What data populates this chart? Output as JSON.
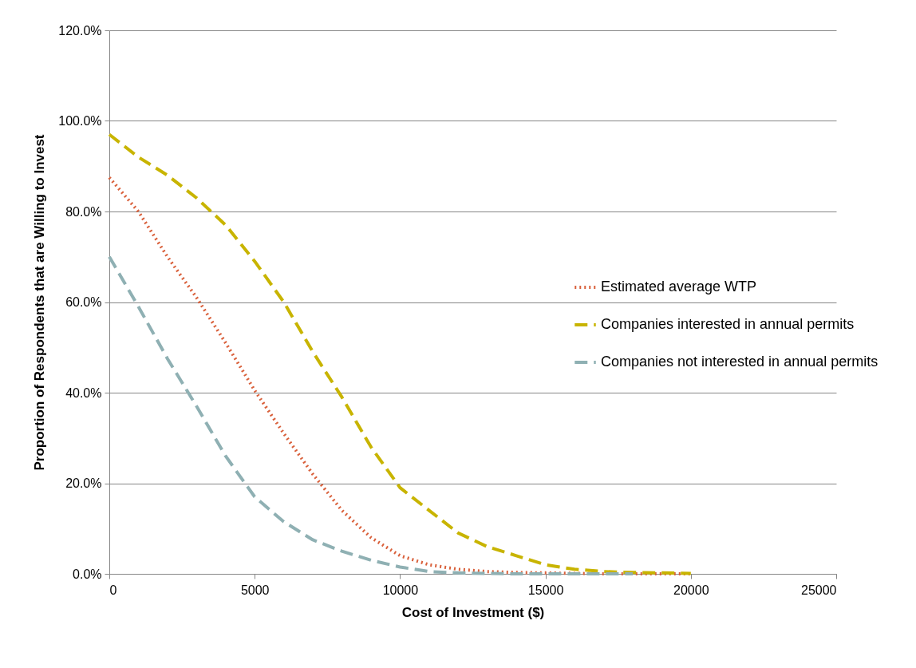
{
  "chart_data": {
    "type": "line",
    "xlabel": "Cost of Investment ($)",
    "ylabel": "Proportion of Respondents that are Willing to Invest",
    "x": [
      0,
      1000,
      2000,
      3000,
      4000,
      5000,
      6000,
      7000,
      8000,
      9000,
      10000,
      11000,
      12000,
      13000,
      14000,
      15000,
      16000,
      17000,
      18000,
      19000,
      20000
    ],
    "series": [
      {
        "name": "Estimated average WTP",
        "color": "#d9603b",
        "line_style": "dotted",
        "values": [
          87.5,
          80,
          70,
          61,
          51,
          40.5,
          31,
          22,
          14,
          8,
          4,
          2,
          1,
          0.5,
          0.3,
          0.2,
          0.1,
          0,
          0,
          0,
          0
        ]
      },
      {
        "name": "Companies interested in annual permits",
        "color": "#c8b400",
        "line_style": "dashed",
        "values": [
          97,
          92,
          88,
          83,
          77,
          69,
          60,
          49,
          39,
          28,
          19,
          14,
          9,
          6,
          4,
          2,
          1,
          0.5,
          0.3,
          0.2,
          0.1
        ]
      },
      {
        "name": "Companies not interested in annual permits",
        "color": "#8fb0b3",
        "line_style": "dashed",
        "values": [
          70,
          59,
          47.5,
          37,
          26,
          17,
          11.5,
          7.5,
          5,
          3,
          1.5,
          0.5,
          0.2,
          0.1,
          0,
          0,
          0,
          0,
          0,
          null,
          null
        ]
      }
    ],
    "xlim": [
      0,
      25000
    ],
    "xticks": [
      0,
      5000,
      10000,
      15000,
      20000,
      25000
    ],
    "ylim": [
      0,
      120
    ],
    "yticks": [
      {
        "value": 0,
        "label": "0.0%"
      },
      {
        "value": 20,
        "label": "20.0%"
      },
      {
        "value": 40,
        "label": "40.0%"
      },
      {
        "value": 60,
        "label": "60.0%"
      },
      {
        "value": 80,
        "label": "80.0%"
      },
      {
        "value": 100,
        "label": "100.0%"
      },
      {
        "value": 120,
        "label": "120.0%"
      }
    ],
    "grid": "y",
    "legend": "right",
    "marker": "none"
  }
}
